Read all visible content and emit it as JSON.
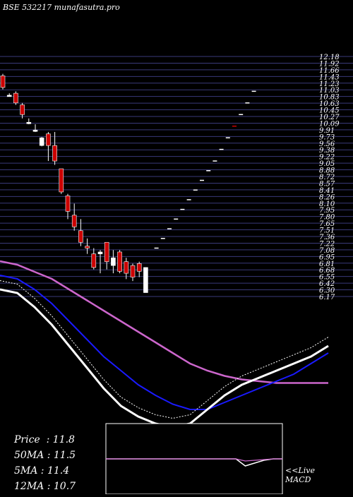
{
  "header": {
    "title": "BSE 532217 munafasutra.pro"
  },
  "stats": [
    {
      "label": "Price",
      "sep": "  : ",
      "value": "11.8"
    },
    {
      "label": "50MA",
      "sep": " : ",
      "value": "11.5"
    },
    {
      "label": "5MA",
      "sep": " : ",
      "value": "11.4"
    },
    {
      "label": "12MA",
      "sep": " : ",
      "value": "10.7"
    }
  ],
  "macd": {
    "label_line1": "<<Live",
    "label_line2": "MACD"
  },
  "colors": {
    "background": "#000000",
    "grid": "#3a3a7a",
    "candle_down": "#cc0000",
    "candle_up": "#ffffff",
    "ma_long": "#cc66cc",
    "ma_mid": "#1a1aff",
    "ma_short": "#ffffff",
    "macd_signal": "#cc66cc"
  },
  "chart_data": {
    "type": "candlestick",
    "price_labels": [
      "12.18",
      "11.92",
      "11.66",
      "11.43",
      "11.23",
      "11.03",
      "10.83",
      "10.63",
      "10.45",
      "10.27",
      "10.09",
      "9.91",
      "9.73",
      "9.56",
      "9.38",
      "9.22",
      "9.05",
      "8.88",
      "8.72",
      "8.57",
      "8.41",
      "8.26",
      "8.10",
      "7.95",
      "7.80",
      "7.65",
      "7.51",
      "7.36",
      "7.22",
      "7.08",
      "6.95",
      "6.81",
      "6.68",
      "6.55",
      "6.42",
      "6.30",
      "6.17"
    ],
    "ylim": [
      6.1,
      12.3
    ],
    "candles": [
      {
        "o": 11.8,
        "c": 11.5,
        "h": 11.85,
        "l": 11.45
      },
      {
        "o": 11.3,
        "c": 11.3,
        "h": 11.35,
        "l": 11.28
      },
      {
        "o": 11.35,
        "c": 11.1,
        "h": 11.4,
        "l": 11.05
      },
      {
        "o": 11.05,
        "c": 10.8,
        "h": 11.1,
        "l": 10.7
      },
      {
        "o": 10.6,
        "c": 10.6,
        "h": 10.7,
        "l": 10.55
      },
      {
        "o": 10.4,
        "c": 10.4,
        "h": 10.55,
        "l": 10.35
      },
      {
        "o": 10.0,
        "c": 10.2,
        "h": 10.22,
        "l": 9.98
      },
      {
        "o": 10.3,
        "c": 10.0,
        "h": 10.35,
        "l": 9.6
      },
      {
        "o": 10.0,
        "c": 9.6,
        "h": 10.35,
        "l": 9.5
      },
      {
        "o": 9.4,
        "c": 8.8,
        "h": 9.4,
        "l": 8.75
      },
      {
        "o": 8.7,
        "c": 8.3,
        "h": 8.75,
        "l": 8.1
      },
      {
        "o": 8.2,
        "c": 7.9,
        "h": 8.5,
        "l": 7.8
      },
      {
        "o": 7.8,
        "c": 7.5,
        "h": 8.1,
        "l": 7.4
      },
      {
        "o": 7.4,
        "c": 7.35,
        "h": 7.6,
        "l": 7.2
      },
      {
        "o": 7.2,
        "c": 6.85,
        "h": 7.35,
        "l": 6.8
      },
      {
        "o": 7.2,
        "c": 7.25,
        "h": 7.3,
        "l": 6.7
      },
      {
        "o": 7.5,
        "c": 7.0,
        "h": 7.5,
        "l": 6.8
      },
      {
        "o": 6.9,
        "c": 7.1,
        "h": 7.3,
        "l": 6.7
      },
      {
        "o": 7.25,
        "c": 6.75,
        "h": 7.3,
        "l": 6.7
      },
      {
        "o": 7.0,
        "c": 6.7,
        "h": 7.1,
        "l": 6.55
      },
      {
        "o": 6.9,
        "c": 6.6,
        "h": 6.95,
        "l": 6.5
      },
      {
        "o": 6.95,
        "c": 6.75,
        "h": 7.0,
        "l": 6.6
      },
      {
        "o": 6.85,
        "c": 6.2,
        "h": 6.85,
        "l": 6.2
      }
    ],
    "projection": [
      7.35,
      7.6,
      7.85,
      8.1,
      8.35,
      8.6,
      8.85,
      9.1,
      9.35,
      9.6,
      9.9,
      10.2,
      10.5,
      10.8,
      11.1,
      11.4
    ],
    "ma_lines": {
      "ma_long": [
        4,
        6,
        10,
        14,
        20,
        26,
        32,
        38,
        44,
        50,
        56,
        62,
        66,
        69,
        71,
        72,
        73,
        73,
        73,
        73
      ],
      "ma_mid": [
        12,
        14,
        20,
        28,
        38,
        48,
        58,
        66,
        74,
        80,
        85,
        88,
        88,
        84,
        80,
        76,
        72,
        68,
        62,
        56
      ],
      "ma_short": [
        20,
        22,
        30,
        40,
        52,
        64,
        76,
        86,
        92,
        96,
        98,
        96,
        88,
        80,
        74,
        70,
        66,
        62,
        58,
        52
      ]
    },
    "macd": {
      "macd_line": [
        0,
        0,
        0,
        0,
        0,
        0,
        0,
        0,
        0,
        0,
        0,
        0,
        0,
        0,
        0,
        -10,
        -6,
        -2,
        0,
        0
      ],
      "signal_line": [
        0,
        0,
        0,
        0,
        0,
        0,
        0,
        0,
        0,
        0,
        0,
        0,
        0,
        0,
        0,
        -3,
        -2,
        -1,
        0,
        0
      ]
    }
  }
}
